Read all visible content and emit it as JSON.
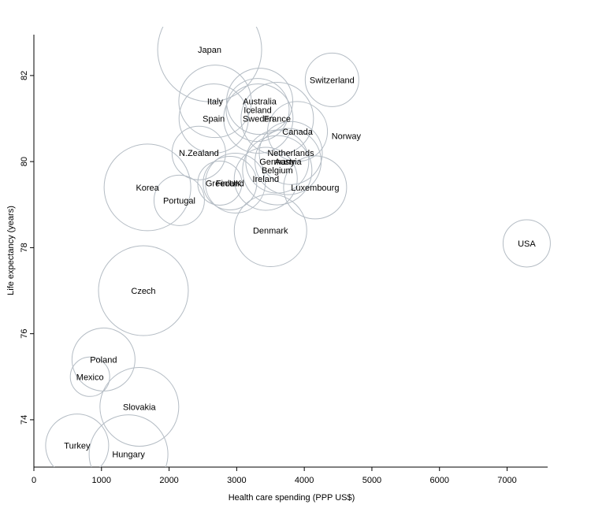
{
  "chart_data": {
    "type": "scatter",
    "title": "",
    "xlabel": "Health care spending (PPP US$)",
    "ylabel": "Life expectancy (years)",
    "xlim": [
      0,
      7600
    ],
    "ylim": [
      72.9,
      82.95
    ],
    "xticks": [
      "0",
      "1000",
      "2000",
      "3000",
      "4000",
      "5000",
      "6000",
      "7000"
    ],
    "yticks": [
      "74",
      "76",
      "78",
      "80",
      "82"
    ],
    "grid": false,
    "bubble_color": "#b4bcc4",
    "points": [
      {
        "label": "Japan",
        "x": 2600,
        "y": 82.6,
        "size": 66
      },
      {
        "label": "Switzerland",
        "x": 4410,
        "y": 81.9,
        "size": 34
      },
      {
        "label": "Italy",
        "x": 2680,
        "y": 81.4,
        "size": 46
      },
      {
        "label": "Australia",
        "x": 3340,
        "y": 81.4,
        "size": 42
      },
      {
        "label": "Iceland",
        "x": 3310,
        "y": 81.2,
        "size": 40
      },
      {
        "label": "Spain",
        "x": 2660,
        "y": 81.0,
        "size": 44
      },
      {
        "label": "Sweden",
        "x": 3320,
        "y": 81.0,
        "size": 44
      },
      {
        "label": "France",
        "x": 3600,
        "y": 81.0,
        "size": 46
      },
      {
        "label": "Canada",
        "x": 3900,
        "y": 80.7,
        "size": 38
      },
      {
        "label": "Norway",
        "x": 4620,
        "y": 80.6,
        "size": 0
      },
      {
        "label": "N.Zealand",
        "x": 2440,
        "y": 80.2,
        "size": 34
      },
      {
        "label": "Netherlands",
        "x": 3800,
        "y": 80.2,
        "size": 40
      },
      {
        "label": "Germany",
        "x": 3600,
        "y": 80.0,
        "size": 40
      },
      {
        "label": "Austria",
        "x": 3760,
        "y": 80.0,
        "size": 42
      },
      {
        "label": "Belgium",
        "x": 3600,
        "y": 79.8,
        "size": 44
      },
      {
        "label": "Ireland",
        "x": 3430,
        "y": 79.6,
        "size": 40
      },
      {
        "label": "Greece",
        "x": 2750,
        "y": 79.5,
        "size": 28
      },
      {
        "label": "Finland",
        "x": 2900,
        "y": 79.5,
        "size": 34
      },
      {
        "label": "UK",
        "x": 2980,
        "y": 79.5,
        "size": 38
      },
      {
        "label": "Luxembourg",
        "x": 4160,
        "y": 79.4,
        "size": 40
      },
      {
        "label": "Korea",
        "x": 1680,
        "y": 79.4,
        "size": 55
      },
      {
        "label": "Portugal",
        "x": 2150,
        "y": 79.1,
        "size": 32
      },
      {
        "label": "Denmark",
        "x": 3500,
        "y": 78.4,
        "size": 46
      },
      {
        "label": "USA",
        "x": 7290,
        "y": 78.1,
        "size": 30
      },
      {
        "label": "Czech",
        "x": 1620,
        "y": 77.0,
        "size": 57
      },
      {
        "label": "Poland",
        "x": 1030,
        "y": 75.4,
        "size": 40
      },
      {
        "label": "Mexico",
        "x": 830,
        "y": 75.0,
        "size": 25
      },
      {
        "label": "Slovakia",
        "x": 1560,
        "y": 74.3,
        "size": 50
      },
      {
        "label": "Turkey",
        "x": 640,
        "y": 73.4,
        "size": 40
      },
      {
        "label": "Hungary",
        "x": 1400,
        "y": 73.2,
        "size": 50
      }
    ]
  }
}
